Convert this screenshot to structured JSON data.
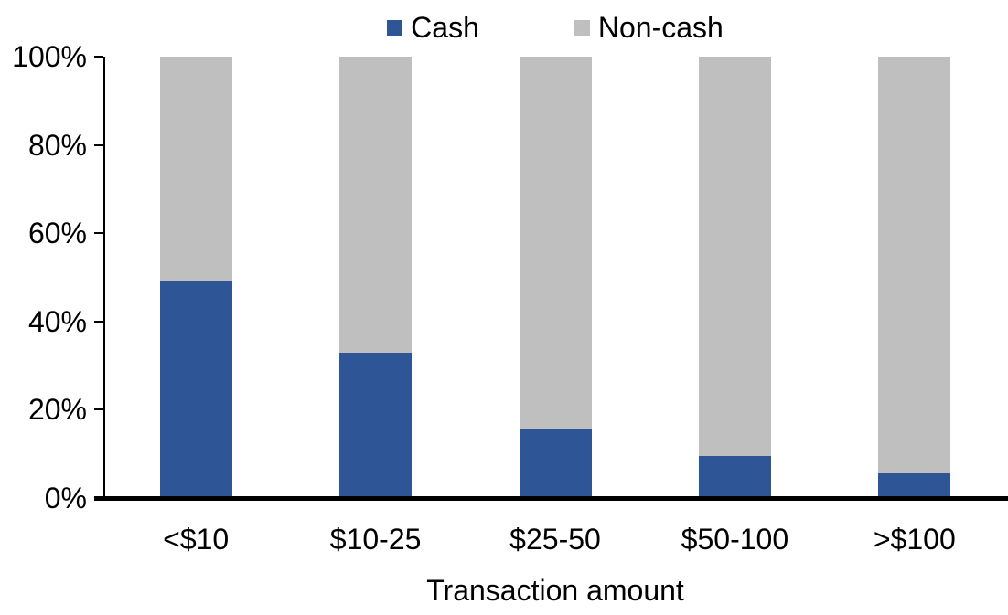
{
  "chart_data": {
    "type": "bar",
    "variant": "stacked-100-percent",
    "xlabel": "Transaction amount",
    "categories": [
      "<$10",
      "$10-25",
      "$25-50",
      "$50-100",
      ">$100"
    ],
    "series": [
      {
        "name": "Cash",
        "color": "#2E5596",
        "values": [
          49,
          33,
          15.5,
          9.5,
          5.5
        ]
      },
      {
        "name": "Non-cash",
        "color": "#BFBFBF",
        "values": [
          51,
          67,
          84.5,
          90.5,
          94.5
        ]
      }
    ],
    "ylim": [
      0,
      100
    ],
    "ytick_step": 20,
    "ytick_labels": [
      "0%",
      "20%",
      "40%",
      "60%",
      "80%",
      "100%"
    ],
    "legend_position": "top",
    "grid": false,
    "colors": {
      "axis": "#000000",
      "background": "#FFFFFF",
      "text": "#000000"
    }
  }
}
